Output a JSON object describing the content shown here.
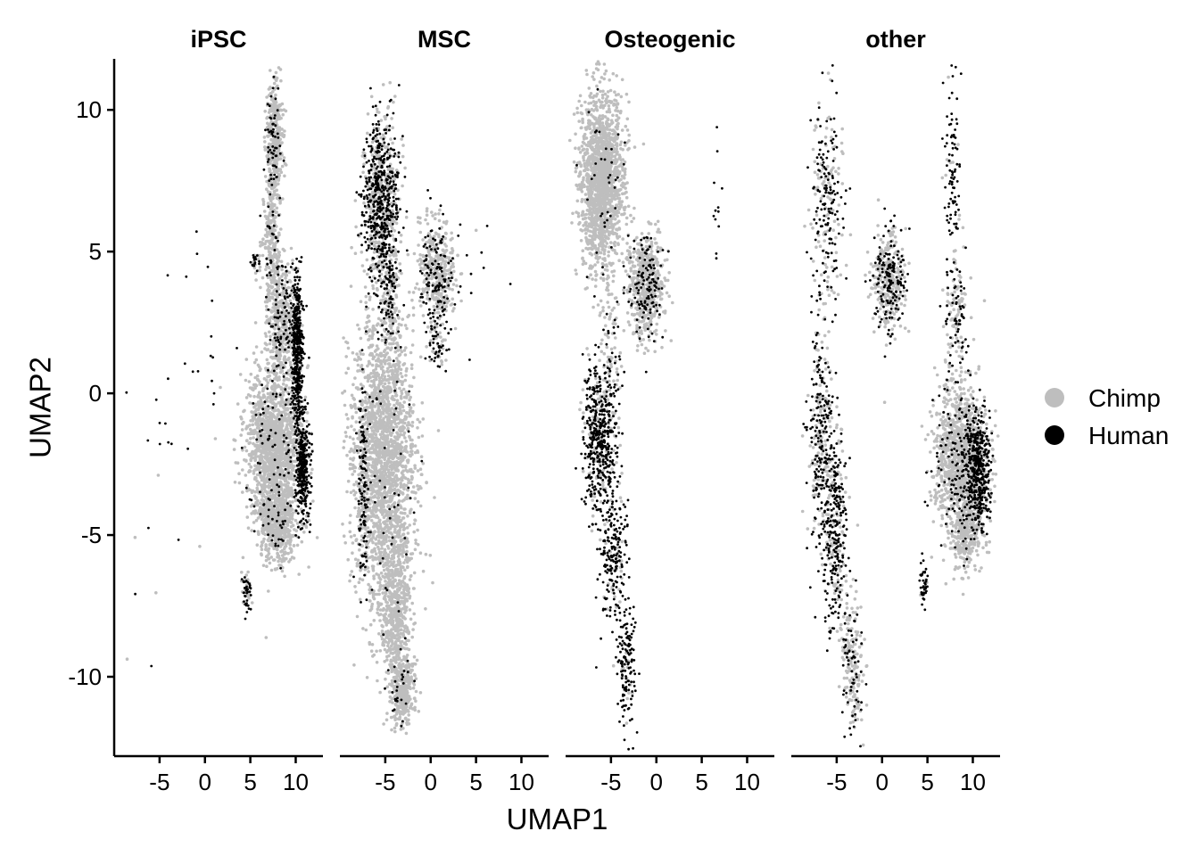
{
  "chart_data": {
    "type": "scatter",
    "title": "",
    "xlabel": "UMAP1",
    "ylabel": "UMAP2",
    "facets": [
      "iPSC",
      "MSC",
      "Osteogenic",
      "other"
    ],
    "xlim": [
      -10,
      13
    ],
    "ylim": [
      -12.8,
      11.8
    ],
    "x_ticks": [
      -5,
      0,
      5,
      10
    ],
    "x_tick_labels": [
      "-5",
      "0",
      "5",
      "10"
    ],
    "y_ticks": [
      -10,
      -5,
      0,
      5,
      10
    ],
    "y_tick_labels": [
      "-10",
      "-5",
      "0",
      "5",
      "10"
    ],
    "grid": false,
    "legend": {
      "placement": "right",
      "entries": [
        {
          "label": "Chimp",
          "color": "#bebebe"
        },
        {
          "label": "Human",
          "color": "#000000"
        }
      ]
    },
    "series": [
      {
        "name": "Chimp",
        "color": "#bebebe"
      },
      {
        "name": "Human",
        "color": "#000000"
      }
    ],
    "clusters": {
      "iPSC": [
        {
          "x": 7.6,
          "y": 8.9,
          "sx": 0.45,
          "sy": 1.1,
          "n": 420,
          "human": 0.12
        },
        {
          "x": 7.3,
          "y": 5.5,
          "sx": 0.5,
          "sy": 1.0,
          "n": 240,
          "human": 0.1
        },
        {
          "x": 8.4,
          "y": 2.6,
          "sx": 0.8,
          "sy": 1.0,
          "n": 480,
          "human": 0.2
        },
        {
          "x": 7.6,
          "y": -1.9,
          "sx": 1.5,
          "sy": 1.4,
          "n": 1600,
          "human": 0.04
        },
        {
          "x": 8.1,
          "y": -4.6,
          "sx": 1.0,
          "sy": 0.7,
          "n": 520,
          "human": 0.03
        },
        {
          "x": 10.2,
          "y": 1.4,
          "sx": 0.3,
          "sy": 1.4,
          "n": 500,
          "human": 0.95
        },
        {
          "x": 10.8,
          "y": -2.6,
          "sx": 0.35,
          "sy": 0.9,
          "n": 380,
          "human": 0.9
        },
        {
          "x": 4.6,
          "y": -7.1,
          "sx": 0.25,
          "sy": 0.4,
          "n": 60,
          "human": 0.5
        },
        {
          "x": 5.6,
          "y": 4.6,
          "sx": 0.25,
          "sy": 0.2,
          "n": 30,
          "human": 0.5
        },
        {
          "x": 0.5,
          "y": 2.5,
          "sx": 1.0,
          "sy": 2.0,
          "n": 14,
          "human": 0.8
        },
        {
          "x": -5.0,
          "y": -3.0,
          "sx": 2.0,
          "sy": 4.0,
          "n": 22,
          "human": 0.8
        }
      ],
      "MSC": [
        {
          "x": -5.5,
          "y": 6.8,
          "sx": 1.0,
          "sy": 1.4,
          "n": 900,
          "human": 0.55
        },
        {
          "x": -4.5,
          "y": 3.5,
          "sx": 0.6,
          "sy": 0.8,
          "n": 160,
          "human": 0.4
        },
        {
          "x": 0.7,
          "y": 4.3,
          "sx": 1.0,
          "sy": 0.9,
          "n": 500,
          "human": 0.25
        },
        {
          "x": 0.8,
          "y": 1.8,
          "sx": 0.5,
          "sy": 0.5,
          "n": 80,
          "human": 0.6
        },
        {
          "x": -5.2,
          "y": -2.2,
          "sx": 1.7,
          "sy": 2.6,
          "n": 2200,
          "human": 0.02
        },
        {
          "x": -3.8,
          "y": -7.8,
          "sx": 0.8,
          "sy": 1.5,
          "n": 600,
          "human": 0.03
        },
        {
          "x": -3.0,
          "y": -10.6,
          "sx": 0.6,
          "sy": 0.6,
          "n": 300,
          "human": 0.08
        },
        {
          "x": -7.4,
          "y": -3.5,
          "sx": 0.3,
          "sy": 2.0,
          "n": 140,
          "human": 0.85
        },
        {
          "x": 5.5,
          "y": 5.5,
          "sx": 1.2,
          "sy": 2.0,
          "n": 10,
          "human": 0.7
        }
      ],
      "Osteogenic": [
        {
          "x": -6.0,
          "y": 7.5,
          "sx": 1.2,
          "sy": 1.6,
          "n": 1600,
          "human": 0.02
        },
        {
          "x": -1.2,
          "y": 3.8,
          "sx": 1.0,
          "sy": 0.9,
          "n": 650,
          "human": 0.18
        },
        {
          "x": -5.0,
          "y": 1.0,
          "sx": 0.5,
          "sy": 1.2,
          "n": 90,
          "human": 0.3
        },
        {
          "x": -6.3,
          "y": -1.5,
          "sx": 0.9,
          "sy": 1.3,
          "n": 520,
          "human": 0.8
        },
        {
          "x": -4.8,
          "y": -5.5,
          "sx": 0.8,
          "sy": 1.5,
          "n": 260,
          "human": 0.82
        },
        {
          "x": -3.3,
          "y": -9.8,
          "sx": 0.5,
          "sy": 1.1,
          "n": 150,
          "human": 0.85
        },
        {
          "x": 6.5,
          "y": 7.5,
          "sx": 0.3,
          "sy": 1.5,
          "n": 12,
          "human": 1.0
        }
      ],
      "other": [
        {
          "x": -6.0,
          "y": 6.6,
          "sx": 0.9,
          "sy": 1.8,
          "n": 260,
          "human": 0.5
        },
        {
          "x": 0.8,
          "y": 4.0,
          "sx": 0.9,
          "sy": 0.9,
          "n": 420,
          "human": 0.35
        },
        {
          "x": 7.7,
          "y": 8.2,
          "sx": 0.4,
          "sy": 1.5,
          "n": 90,
          "human": 0.9
        },
        {
          "x": 8.3,
          "y": 3.0,
          "sx": 0.7,
          "sy": 1.2,
          "n": 160,
          "human": 0.45
        },
        {
          "x": 8.6,
          "y": -2.3,
          "sx": 1.4,
          "sy": 1.3,
          "n": 1200,
          "human": 0.12
        },
        {
          "x": 10.6,
          "y": -2.8,
          "sx": 0.6,
          "sy": 1.0,
          "n": 500,
          "human": 0.85
        },
        {
          "x": 9.2,
          "y": -5.1,
          "sx": 0.8,
          "sy": 0.6,
          "n": 260,
          "human": 0.05
        },
        {
          "x": -6.8,
          "y": -1.5,
          "sx": 0.7,
          "sy": 2.0,
          "n": 320,
          "human": 0.6
        },
        {
          "x": -5.2,
          "y": -4.8,
          "sx": 0.7,
          "sy": 1.8,
          "n": 380,
          "human": 0.62
        },
        {
          "x": -3.3,
          "y": -9.5,
          "sx": 0.6,
          "sy": 1.3,
          "n": 220,
          "human": 0.3
        },
        {
          "x": 4.6,
          "y": -6.8,
          "sx": 0.25,
          "sy": 0.4,
          "n": 45,
          "human": 0.8
        }
      ]
    }
  }
}
